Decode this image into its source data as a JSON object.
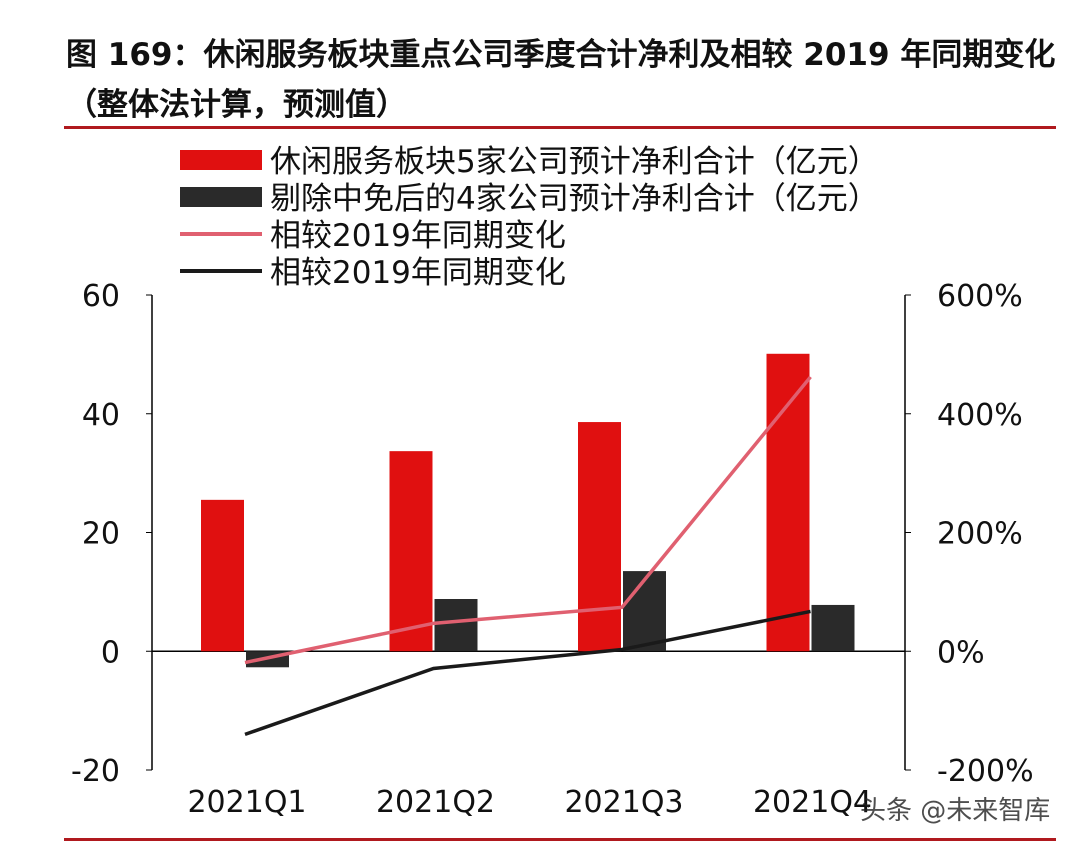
{
  "title": "图 169：休闲服务板块重点公司季度合计净利及相较 2019 年同期变化（整体法计算，预测值）",
  "watermark": "头条 @未来智库",
  "chart_data": {
    "type": "bar+line",
    "categories": [
      "2021Q1",
      "2021Q2",
      "2021Q3",
      "2021Q4"
    ],
    "series": [
      {
        "name": "休闲服务板块5家公司预计净利合计（亿元）",
        "type": "bar",
        "axis": "left",
        "color": "#e01010",
        "values": [
          25.5,
          33.7,
          38.6,
          50.1
        ]
      },
      {
        "name": "剔除中免后的4家公司预计净利合计（亿元）",
        "type": "bar",
        "axis": "left",
        "color": "#2a2a2a",
        "values": [
          -2.7,
          8.8,
          13.5,
          7.8
        ]
      },
      {
        "name": "相较2019年同期变化",
        "type": "line",
        "axis": "right",
        "color": "#e06070",
        "values": [
          -19,
          47,
          74,
          462
        ]
      },
      {
        "name": "相较2019年同期变化",
        "type": "line",
        "axis": "right",
        "color": "#1a1a1a",
        "values": [
          -140,
          -29,
          3,
          67
        ]
      }
    ],
    "left_axis": {
      "ylim": [
        -20,
        60
      ],
      "ticks": [
        "60",
        "40",
        "20",
        "0",
        "-20"
      ]
    },
    "right_axis": {
      "ylim": [
        -200,
        600
      ],
      "ticks": [
        "600%",
        "400%",
        "200%",
        "0%",
        "-200%"
      ]
    },
    "legend": "top"
  }
}
